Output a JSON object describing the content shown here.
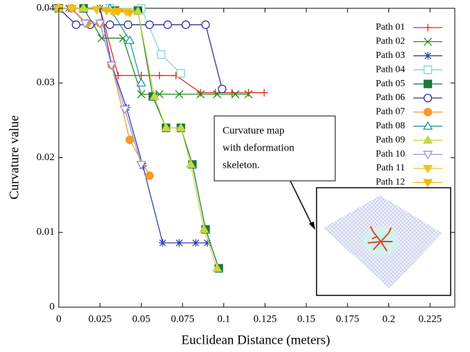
{
  "chart_data": {
    "type": "line",
    "xlabel": "Euclidean Distance (meters)",
    "ylabel": "Curvature value",
    "xlim": [
      0,
      0.24
    ],
    "ylim": [
      0,
      0.04
    ],
    "xticks": [
      0,
      0.025,
      0.05,
      0.075,
      0.1,
      0.125,
      0.15,
      0.175,
      0.2,
      0.225
    ],
    "yticks": [
      0,
      0.01,
      0.02,
      0.03,
      0.04
    ],
    "legend": "upper right",
    "annotation": [
      "Curvature map",
      "with deformation",
      "skeleton."
    ],
    "series": [
      {
        "name": "Path 01",
        "color": "#e8251e",
        "marker": "plus",
        "x": [
          0,
          0.006,
          0.015,
          0.025,
          0.036,
          0.05,
          0.061,
          0.071,
          0.086,
          0.095,
          0.105,
          0.115,
          0.1245
        ],
        "values": [
          0.04,
          0.04,
          0.04,
          0.04,
          0.031,
          0.031,
          0.031,
          0.031,
          0.0287,
          0.0287,
          0.0287,
          0.0287,
          0.0287
        ]
      },
      {
        "name": "Path 02",
        "color": "#1e8a1e",
        "marker": "x",
        "x": [
          0,
          0.015,
          0.026,
          0.039,
          0.05,
          0.061,
          0.073,
          0.086,
          0.096,
          0.107,
          0.115
        ],
        "values": [
          0.04,
          0.04,
          0.036,
          0.036,
          0.0285,
          0.0285,
          0.0285,
          0.0285,
          0.0285,
          0.0285,
          0.0285
        ]
      },
      {
        "name": "Path 03",
        "color": "#2b3fa8",
        "marker": "star",
        "x": [
          0,
          0.006,
          0.015,
          0.025,
          0.032,
          0.041,
          0.051,
          0.063,
          0.073,
          0.083,
          0.09
        ],
        "values": [
          0.04,
          0.04,
          0.04,
          0.04,
          0.0325,
          0.0267,
          0.0189,
          0.0086,
          0.0086,
          0.0086,
          0.0086
        ]
      },
      {
        "name": "Path 04",
        "color": "#7fd6d6",
        "marker": "square",
        "x": [
          0,
          0.015,
          0.031,
          0.05,
          0.062,
          0.074
        ],
        "values": [
          0.04,
          0.04,
          0.04,
          0.04,
          0.0338,
          0.0313
        ]
      },
      {
        "name": "Path 05",
        "color": "#1a7a3a",
        "marker": "square-filled",
        "x": [
          0,
          0.015,
          0.034,
          0.048,
          0.057,
          0.065,
          0.074,
          0.081,
          0.089,
          0.097
        ],
        "values": [
          0.04,
          0.04,
          0.0397,
          0.0397,
          0.0282,
          0.024,
          0.024,
          0.0191,
          0.0104,
          0.0052
        ]
      },
      {
        "name": "Path 06",
        "color": "#2e2e99",
        "marker": "circle",
        "x": [
          0,
          0.0105,
          0.019,
          0.031,
          0.042,
          0.055,
          0.066,
          0.077,
          0.089,
          0.099
        ],
        "values": [
          0.04,
          0.0378,
          0.0378,
          0.0378,
          0.0378,
          0.0378,
          0.0378,
          0.0378,
          0.0378,
          0.0292
        ]
      },
      {
        "name": "Path 07",
        "color": "#f39a2a",
        "marker": "circle-filled",
        "x": [
          0,
          0.008,
          0.017,
          0.025,
          0.032,
          0.043,
          0.055
        ],
        "values": [
          0.04,
          0.04,
          0.038,
          0.038,
          0.0324,
          0.0224,
          0.0176
        ]
      },
      {
        "name": "Path 08",
        "color": "#1e9a9a",
        "marker": "triangle",
        "x": [
          0,
          0.015,
          0.031,
          0.043,
          0.05
        ],
        "values": [
          0.04,
          0.04,
          0.04,
          0.0357,
          0.03
        ]
      },
      {
        "name": "Path 09",
        "color": "#c8d64a",
        "marker": "triangle-filled",
        "x": [
          0,
          0.015,
          0.034,
          0.048,
          0.058,
          0.065,
          0.074,
          0.08,
          0.088,
          0.096
        ],
        "values": [
          0.04,
          0.04,
          0.0396,
          0.0396,
          0.0282,
          0.024,
          0.024,
          0.0191,
          0.0104,
          0.0052
        ]
      },
      {
        "name": "Path 10",
        "color": "#9a8fd8",
        "marker": "triangle-down",
        "x": [
          0,
          0.0075,
          0.016,
          0.025,
          0.032,
          0.04,
          0.05
        ],
        "values": [
          0.04,
          0.04,
          0.038,
          0.038,
          0.0324,
          0.0265,
          0.0191
        ]
      },
      {
        "name": "Path 11",
        "color": "#f2c21b",
        "marker": "triangle-down-filled",
        "x": [
          0,
          0.008,
          0.023,
          0.033,
          0.041
        ],
        "values": [
          0.04,
          0.04,
          0.0398,
          0.0395,
          0.0395
        ]
      },
      {
        "name": "Path 12",
        "color": "#f5b800",
        "marker": "triangle-down-filled",
        "x": [
          0.029,
          0.036,
          0.043
        ],
        "values": [
          0.0397,
          0.0396,
          0.0394
        ]
      }
    ]
  }
}
